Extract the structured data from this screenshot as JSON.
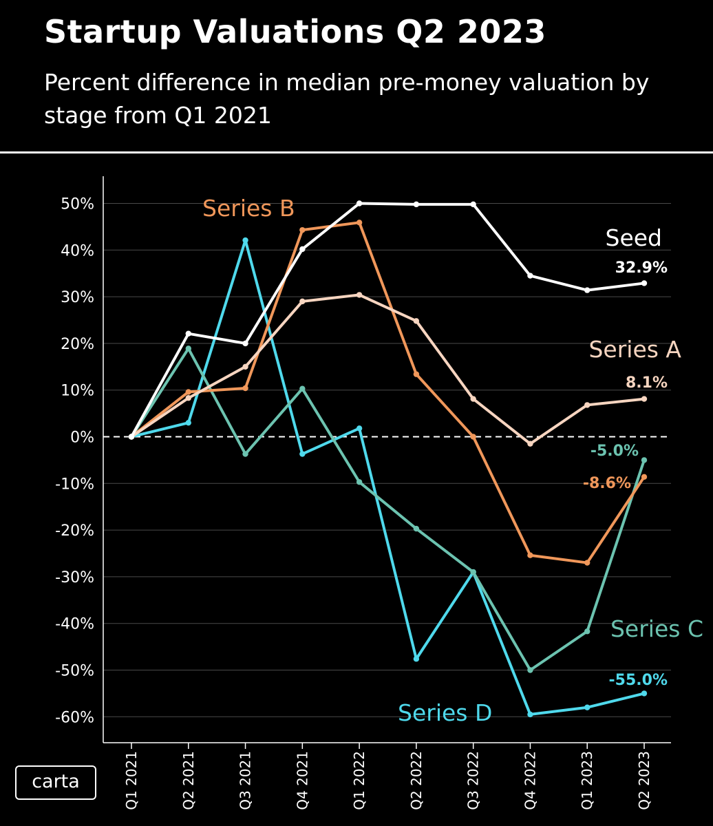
{
  "title": "Startup Valuations Q2 2023",
  "subtitle": "Percent difference in median pre-money valuation by stage from Q1 2021",
  "logo_text": "carta",
  "chart_data": {
    "type": "line",
    "title": "Startup Valuations Q2 2023",
    "subtitle": "Percent difference in median pre-money valuation by stage from Q1 2021",
    "xlabel": "",
    "ylabel": "",
    "categories": [
      "Q1 2021",
      "Q2 2021",
      "Q3 2021",
      "Q4 2021",
      "Q1 2022",
      "Q2 2022",
      "Q3 2022",
      "Q4 2022",
      "Q1 2023",
      "Q2 2023"
    ],
    "yticks": [
      -60,
      -50,
      -40,
      -30,
      -20,
      -10,
      0,
      10,
      20,
      30,
      40,
      50
    ],
    "ytick_labels": [
      "-60%",
      "-50%",
      "-40%",
      "-30%",
      "-20%",
      "-10%",
      "0%",
      "10%",
      "20%",
      "30%",
      "40%",
      "50%"
    ],
    "ylim": [
      -66,
      56
    ],
    "grid": true,
    "zero_line": "dashed",
    "series": [
      {
        "name": "Seed",
        "color": "#ffffff",
        "values": [
          0,
          22.1,
          20.0,
          40.2,
          50.0,
          49.8,
          49.8,
          34.5,
          31.4,
          32.9
        ],
        "end_label": "32.9%"
      },
      {
        "name": "Series A",
        "color": "#f7d5c0",
        "values": [
          0,
          8.3,
          15.0,
          29.0,
          30.4,
          24.8,
          8.1,
          -1.5,
          6.8,
          8.1
        ],
        "end_label": "8.1%"
      },
      {
        "name": "Series B",
        "color": "#f0975a",
        "values": [
          0,
          9.6,
          10.4,
          44.3,
          45.9,
          13.4,
          0,
          -25.4,
          -27.0,
          -8.6
        ],
        "end_label": "-8.6%"
      },
      {
        "name": "Series C",
        "color": "#6cc3b0",
        "values": [
          0,
          18.9,
          -3.7,
          10.3,
          -9.7,
          -19.7,
          -29.0,
          -50.0,
          -41.7,
          -5.0
        ],
        "end_label": "-5.0%"
      },
      {
        "name": "Series D",
        "color": "#4fd9ec",
        "values": [
          0,
          3.0,
          42.1,
          -3.7,
          1.8,
          -47.6,
          -29.0,
          -59.5,
          -58.0,
          -55.0
        ],
        "end_label": "-55.0%"
      }
    ]
  }
}
